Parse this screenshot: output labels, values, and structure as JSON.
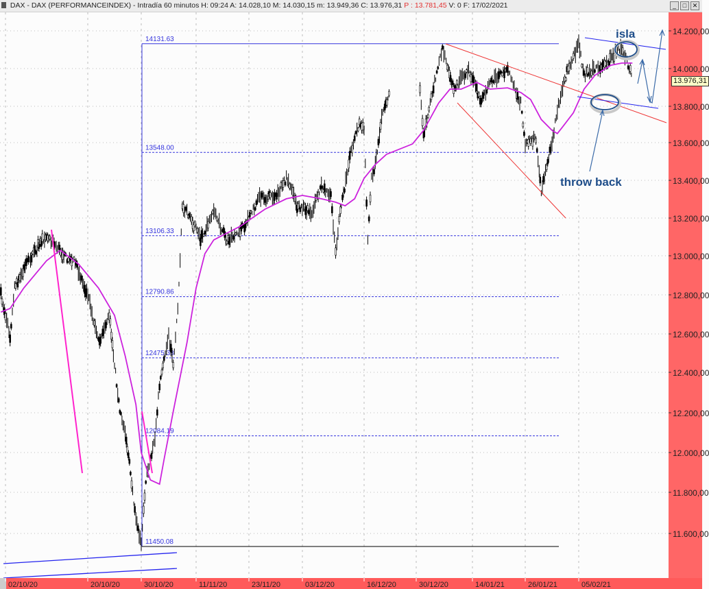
{
  "header": {
    "title": "DAX - DAX (PERFORMANCEINDEX) - Intradía 60 minutos",
    "h": "H: 09:24",
    "a": "A: 14.028,10",
    "m_high": "M: 14.030,15",
    "m_low": "m: 13.949,36",
    "c": "C: 13.976,31",
    "p": "P : 13.781,45",
    "v": "V: 0",
    "f": "F: 17/02/2021"
  },
  "window_controls": {
    "minimize": "_",
    "maximize": "□",
    "close": "✕"
  },
  "colors": {
    "axis_bg": "#ff6666",
    "candles": "#000000",
    "moving_average": "#cc22dd",
    "fibonacci": "#3333dd",
    "trendlines_red": "#ee3333",
    "annotations": "#2a5a9a"
  },
  "chart_data": {
    "type": "candlestick",
    "title": "DAX - DAX (PERFORMANCEINDEX) - Intradía 60 minutos",
    "scale": "log",
    "ylim": [
      11450,
      14250
    ],
    "grid": true,
    "y_ticks": [
      "14.200,00",
      "14.000,00",
      "13.800,00",
      "13.600,00",
      "13.400,00",
      "13.200,00",
      "13.000,00",
      "12.800,00",
      "12.600,00",
      "12.400,00",
      "12.200,00",
      "12.000,00",
      "11.800,00",
      "11.600,00"
    ],
    "x_ticks": [
      "02/10/20",
      "20/10/20",
      "30/10/20",
      "11/11/20",
      "23/11/20",
      "03/12/20",
      "16/12/20",
      "30/12/20",
      "14/01/21",
      "26/01/21",
      "05/02/21"
    ],
    "price_path": [
      [
        "2020-10-01",
        12800
      ],
      [
        "2020-10-03",
        12590
      ],
      [
        "2020-10-04",
        12835
      ],
      [
        "2020-10-07",
        12975
      ],
      [
        "2020-10-11",
        13115
      ],
      [
        "2020-10-15",
        12993
      ],
      [
        "2020-10-17",
        12975
      ],
      [
        "2020-10-20",
        12800
      ],
      [
        "2020-10-22",
        12555
      ],
      [
        "2020-10-24",
        12695
      ],
      [
        "2020-10-26",
        12207
      ],
      [
        "2020-10-27",
        12105
      ],
      [
        "2020-10-28",
        11900
      ],
      [
        "2020-10-29",
        11660
      ],
      [
        "2020-10-30",
        11560
      ],
      [
        "2020-10-31",
        11862
      ],
      [
        "2020-11-02",
        12070
      ],
      [
        "2020-11-03",
        12340
      ],
      [
        "2020-11-05",
        12590
      ],
      [
        "2020-11-06",
        12446
      ],
      [
        "2020-11-07",
        12730
      ],
      [
        "2020-11-08",
        13265
      ],
      [
        "2020-11-10",
        13193
      ],
      [
        "2020-11-12",
        13084
      ],
      [
        "2020-11-15",
        13229
      ],
      [
        "2020-11-18",
        13084
      ],
      [
        "2020-11-22",
        13156
      ],
      [
        "2020-11-25",
        13309
      ],
      [
        "2020-11-28",
        13309
      ],
      [
        "2020-11-30",
        13411
      ],
      [
        "2020-12-02",
        13265
      ],
      [
        "2020-12-05",
        13229
      ],
      [
        "2020-12-07",
        13375
      ],
      [
        "2020-12-09",
        13309
      ],
      [
        "2020-12-10",
        13029
      ],
      [
        "2020-12-11",
        13229
      ],
      [
        "2020-12-13",
        13520
      ],
      [
        "2020-12-14",
        13630
      ],
      [
        "2020-12-15",
        13705
      ],
      [
        "2020-12-16",
        13668
      ],
      [
        "2020-12-17",
        13084
      ],
      [
        "2020-12-18",
        13411
      ],
      [
        "2020-12-19",
        13484
      ],
      [
        "2020-12-21",
        13782
      ],
      [
        "2020-12-23",
        13873
      ],
      [
        "2020-12-31",
        13891
      ],
      [
        "2021-01-01",
        13630
      ],
      [
        "2021-01-03",
        13855
      ],
      [
        "2021-01-06",
        14109
      ],
      [
        "2021-01-07",
        14036
      ],
      [
        "2021-01-09",
        13891
      ],
      [
        "2021-01-13",
        14000
      ],
      [
        "2021-01-16",
        13818
      ],
      [
        "2021-01-18",
        13927
      ],
      [
        "2021-01-22",
        14000
      ],
      [
        "2021-01-25",
        13818
      ],
      [
        "2021-01-26",
        13593
      ],
      [
        "2021-01-28",
        13630
      ],
      [
        "2021-01-29",
        13338
      ],
      [
        "2021-01-30",
        13484
      ],
      [
        "2021-01-31",
        13593
      ],
      [
        "2021-02-01",
        13782
      ],
      [
        "2021-02-03",
        14000
      ],
      [
        "2021-02-05",
        14127
      ],
      [
        "2021-02-06",
        13964
      ],
      [
        "2021-02-08",
        14000
      ],
      [
        "2021-02-10",
        14018
      ],
      [
        "2021-02-12",
        14091
      ],
      [
        "2021-02-13",
        14109
      ],
      [
        "2021-02-15",
        13964
      ]
    ],
    "moving_average": [
      [
        "2020-10-01",
        12712
      ],
      [
        "2020-10-03",
        12730
      ],
      [
        "2020-10-06",
        12835
      ],
      [
        "2020-10-11",
        12975
      ],
      [
        "2020-10-14",
        13029
      ],
      [
        "2020-10-18",
        12957
      ],
      [
        "2020-10-22",
        12835
      ],
      [
        "2020-10-25",
        12695
      ],
      [
        "2020-10-27",
        12485
      ],
      [
        "2020-10-29",
        12241
      ],
      [
        "2020-10-30",
        12000
      ],
      [
        "2020-11-01",
        11862
      ],
      [
        "2020-11-03",
        11841
      ],
      [
        "2020-11-04",
        11966
      ],
      [
        "2020-11-06",
        12207
      ],
      [
        "2020-11-09",
        12555
      ],
      [
        "2020-11-11",
        12835
      ],
      [
        "2020-11-13",
        13011
      ],
      [
        "2020-11-15",
        13084
      ],
      [
        "2020-11-18",
        13120
      ],
      [
        "2020-11-21",
        13156
      ],
      [
        "2020-11-26",
        13247
      ],
      [
        "2020-11-30",
        13302
      ],
      [
        "2020-12-03",
        13320
      ],
      [
        "2020-12-07",
        13302
      ],
      [
        "2020-12-10",
        13284
      ],
      [
        "2020-12-12",
        13265
      ],
      [
        "2020-12-14",
        13302
      ],
      [
        "2020-12-16",
        13411
      ],
      [
        "2020-12-19",
        13484
      ],
      [
        "2020-12-22",
        13538
      ],
      [
        "2020-12-29",
        13593
      ],
      [
        "2021-01-01",
        13668
      ],
      [
        "2021-01-05",
        13818
      ],
      [
        "2021-01-08",
        13891
      ],
      [
        "2021-01-11",
        13891
      ],
      [
        "2021-01-15",
        13927
      ],
      [
        "2021-01-18",
        13891
      ],
      [
        "2021-01-22",
        13898
      ],
      [
        "2021-01-25",
        13873
      ],
      [
        "2021-01-27",
        13836
      ],
      [
        "2021-01-29",
        13727
      ],
      [
        "2021-01-31",
        13668
      ],
      [
        "2021-02-01",
        13650
      ],
      [
        "2021-02-02",
        13687
      ],
      [
        "2021-02-04",
        13764
      ],
      [
        "2021-02-06",
        13891
      ],
      [
        "2021-02-08",
        13964
      ],
      [
        "2021-02-11",
        14018
      ],
      [
        "2021-02-13",
        14029
      ],
      [
        "2021-02-15",
        14029
      ]
    ],
    "fibonacci_levels": [
      {
        "label": "14131.63",
        "value": 14131.63
      },
      {
        "label": "13548.00",
        "value": 13548.0
      },
      {
        "label": "13106.33",
        "value": 13106.33
      },
      {
        "label": "12790.86",
        "value": 12790.86
      },
      {
        "label": "12475.38",
        "value": 12475.38
      },
      {
        "label": "12084.19",
        "value": 12084.19
      },
      {
        "label": "11450.08",
        "value": 11450.08
      }
    ],
    "last_price_label": "13.976,31",
    "annotations": {
      "island": "isla",
      "throwback": "throw back"
    }
  }
}
